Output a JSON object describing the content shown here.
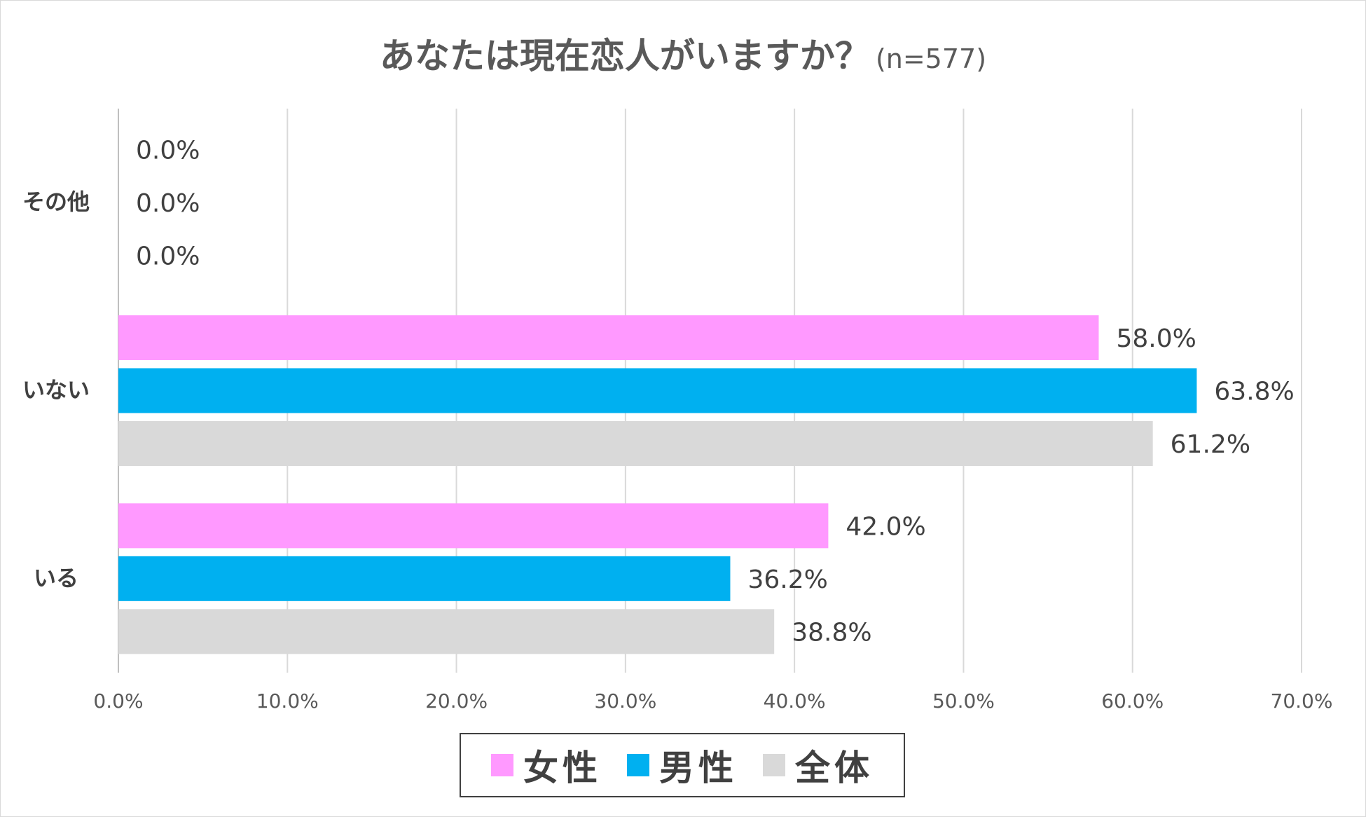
{
  "title": {
    "main": "あなたは現在恋人がいますか？",
    "sub": "(n=577)"
  },
  "chart_data": {
    "type": "bar",
    "orientation": "horizontal",
    "categories": [
      "その他",
      "いない",
      "いる"
    ],
    "series": [
      {
        "name": "女性",
        "color": "#FF99FF",
        "values": [
          0.0,
          58.0,
          42.0
        ]
      },
      {
        "name": "男性",
        "color": "#00B0F0",
        "values": [
          0.0,
          63.8,
          36.2
        ]
      },
      {
        "name": "全体",
        "color": "#D9D9D9",
        "values": [
          0.0,
          61.2,
          38.8
        ]
      }
    ],
    "data_labels": [
      [
        "0.0%",
        "58.0%",
        "42.0%"
      ],
      [
        "0.0%",
        "63.8%",
        "36.2%"
      ],
      [
        "0.0%",
        "61.2%",
        "38.8%"
      ]
    ],
    "xlim": [
      0,
      70
    ],
    "x_ticks": [
      0,
      10,
      20,
      30,
      40,
      50,
      60,
      70
    ],
    "x_tick_labels": [
      "0.0%",
      "10.0%",
      "20.0%",
      "30.0%",
      "40.0%",
      "50.0%",
      "60.0%",
      "70.0%"
    ],
    "grid": true,
    "legend_position": "bottom",
    "xlabel": "",
    "ylabel": ""
  }
}
